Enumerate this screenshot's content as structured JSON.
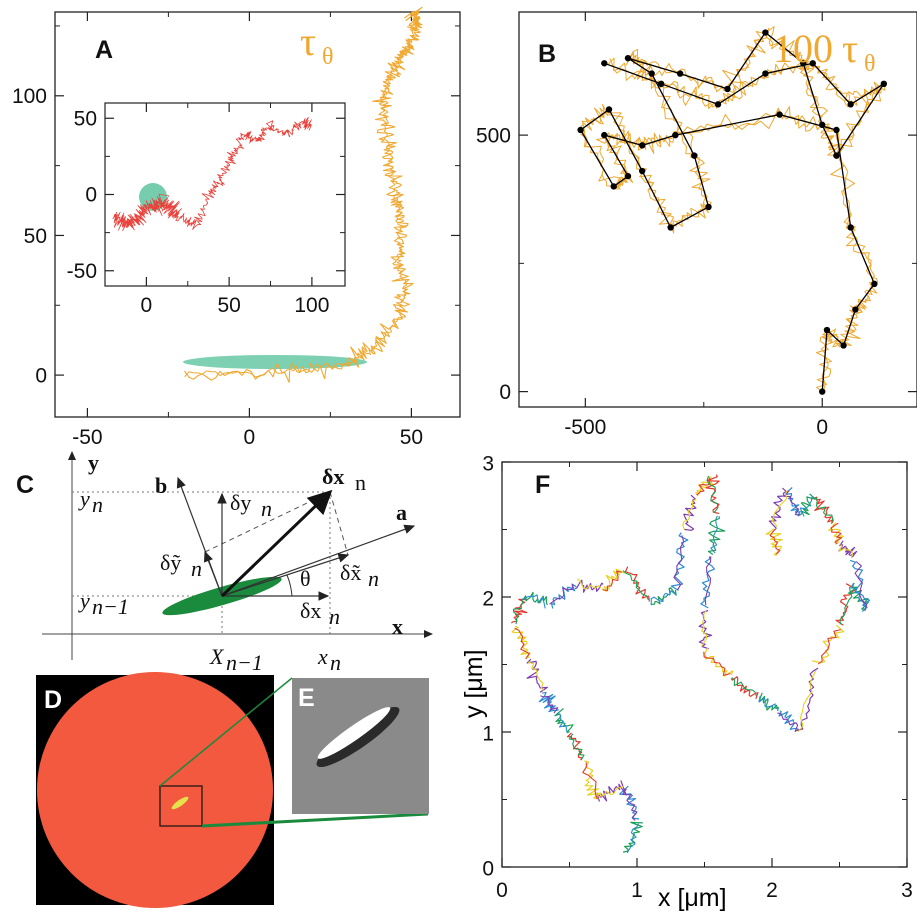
{
  "colors": {
    "trajectory": "#f0a830",
    "ellipse": "#5ec4a0",
    "inset_walk": "#e8413a",
    "coarse_path": "#000000",
    "disk": "#f2593e",
    "particle": "#1a8a3c",
    "f_colors": [
      "#1aa055",
      "#2a8cd2",
      "#7e3cb0",
      "#e8d11e",
      "#e33a2c"
    ]
  },
  "panels": {
    "A": {
      "label": "A",
      "tau": "τ",
      "tau_sub": "θ"
    },
    "B": {
      "label": "B",
      "prefix": "100",
      "tau": "τ",
      "tau_sub": "θ"
    },
    "C": {
      "label": "C",
      "y_axis": "y",
      "x_axis": "x",
      "vec_b": "b",
      "vec_a": "a",
      "dx_bold": "δx",
      "dx_sub": "n",
      "yn": "y",
      "yn_sub": "n",
      "yn1": "y",
      "yn1_sub": "n−1",
      "dyn": "δy",
      "dyn_sub": "n",
      "dytn": "δỹ",
      "dytn_sub": "n",
      "dxtn": "δx̃",
      "dxtn_sub": "n",
      "theta": "θ",
      "dxn": "δx",
      "dxn_sub": "n",
      "Xn1": "X",
      "Xn1_sub": "n−1",
      "xn": "x",
      "xn_sub": "n"
    },
    "D": {
      "label": "D"
    },
    "E": {
      "label": "E"
    },
    "F": {
      "label": "F",
      "xlabel": "x [μm]",
      "ylabel": "y [μm]"
    }
  },
  "chart_data": [
    {
      "panel": "A",
      "type": "line",
      "title": "",
      "xlim": [
        -60,
        65
      ],
      "ylim": [
        -15,
        130
      ],
      "x_ticks": [
        -50,
        0,
        50
      ],
      "y_ticks": [
        0,
        50,
        100
      ],
      "series": [
        {
          "x": [
            -20,
            10,
            30,
            38,
            46,
            48,
            46,
            47,
            45,
            44,
            42,
            41,
            44,
            47,
            50,
            52,
            50
          ],
          "y": [
            0,
            1,
            4,
            10,
            20,
            30,
            42,
            55,
            65,
            75,
            88,
            100,
            108,
            114,
            120,
            127,
            130
          ]
        }
      ],
      "inset": {
        "type": "line",
        "xlim": [
          -25,
          120
        ],
        "ylim": [
          -60,
          60
        ],
        "x_ticks": [
          0,
          50,
          100
        ],
        "y_ticks": [
          -50,
          0,
          50
        ],
        "series": [
          {
            "x": [
              -20,
              -10,
              0,
              10,
              20,
              30,
              38,
              45,
              52,
              60,
              68,
              75,
              85,
              95,
              100
            ],
            "y": [
              -15,
              -20,
              -10,
              -5,
              -15,
              -20,
              0,
              10,
              25,
              40,
              35,
              45,
              40,
              48,
              45
            ]
          }
        ]
      }
    },
    {
      "panel": "B",
      "type": "line",
      "title": "",
      "xlim": [
        -640,
        200
      ],
      "ylim": [
        -30,
        740
      ],
      "x_ticks": [
        -500,
        0
      ],
      "y_ticks": [
        0,
        500
      ],
      "series": [
        {
          "x": [
            0,
            10,
            45,
            70,
            110,
            60,
            30,
            -90,
            -310,
            -380,
            -460,
            -410,
            -440,
            -510,
            -450,
            -380,
            -320,
            -240,
            -270,
            -360,
            -410,
            -300,
            -200,
            -120,
            -40,
            0,
            30,
            130,
            60,
            -20,
            -120,
            -220,
            -340,
            -460
          ],
          "y": [
            0,
            120,
            90,
            160,
            210,
            320,
            510,
            540,
            500,
            480,
            500,
            420,
            400,
            510,
            550,
            430,
            320,
            360,
            460,
            620,
            650,
            620,
            590,
            700,
            640,
            520,
            460,
            600,
            560,
            640,
            620,
            560,
            600,
            640
          ]
        }
      ]
    },
    {
      "panel": "F",
      "type": "line",
      "title": "",
      "xlabel": "x [μm]",
      "ylabel": "y [μm]",
      "xlim": [
        0,
        3
      ],
      "ylim": [
        0,
        3
      ],
      "x_ticks": [
        0,
        1,
        2,
        3
      ],
      "y_ticks": [
        0,
        1,
        2,
        3
      ],
      "series": [
        {
          "x": [
            0.95,
            1.0,
            0.9,
            0.7,
            0.6,
            0.5,
            0.4,
            0.3,
            0.2,
            0.1,
            0.15,
            0.35,
            0.55,
            0.75,
            0.9,
            1.1,
            1.3,
            1.35,
            1.45,
            1.55,
            1.6,
            1.55,
            1.5,
            1.5,
            1.7,
            1.9,
            2.05,
            2.2,
            2.35,
            2.5,
            2.6,
            2.7,
            2.6,
            2.5,
            2.45,
            2.3,
            2.2,
            2.1,
            2.0,
            2.05
          ],
          "y": [
            0.1,
            0.35,
            0.6,
            0.5,
            0.8,
            1.0,
            1.15,
            1.3,
            1.55,
            1.8,
            2.0,
            1.95,
            2.1,
            2.05,
            2.2,
            1.95,
            2.05,
            2.5,
            2.75,
            2.9,
            2.6,
            2.3,
            1.9,
            1.6,
            1.4,
            1.25,
            1.15,
            1.0,
            1.5,
            1.8,
            2.1,
            1.9,
            2.3,
            2.4,
            2.55,
            2.75,
            2.6,
            2.8,
            2.5,
            2.3
          ]
        }
      ]
    }
  ]
}
